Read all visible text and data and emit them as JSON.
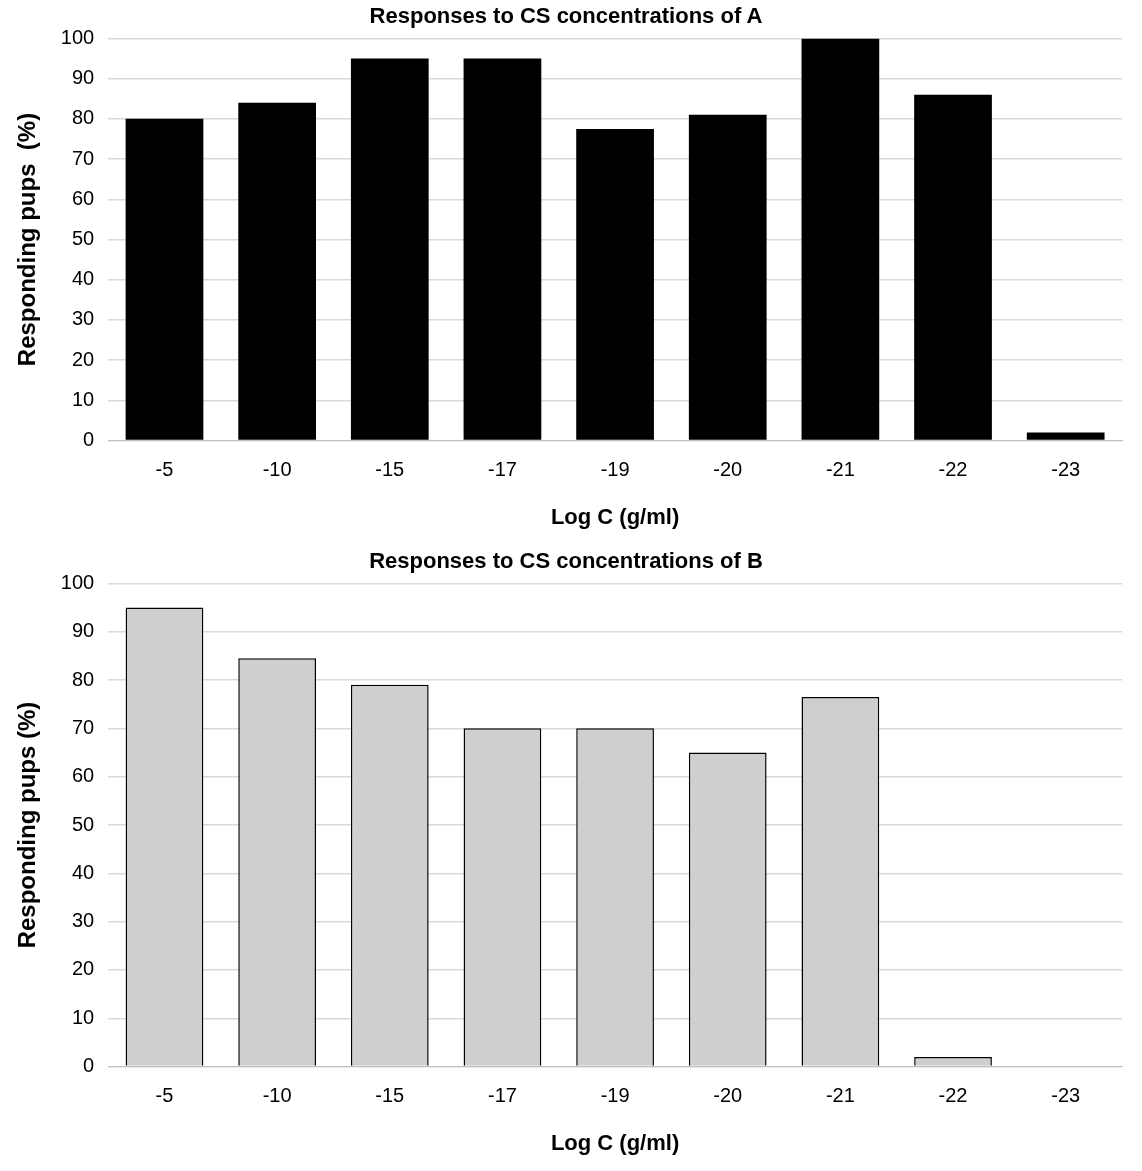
{
  "chart_data": [
    {
      "type": "bar",
      "title": "Responses to CS concentrations of A",
      "xlabel": "Log C (g/ml)",
      "ylabel": "Responding pups  (%)",
      "categories": [
        "-5",
        "-10",
        "-15",
        "-17",
        "-19",
        "-20",
        "-21",
        "-22",
        "-23"
      ],
      "series": [
        {
          "color": "#000000",
          "values": [
            80,
            84,
            95,
            95,
            77.5,
            81,
            100,
            86,
            2
          ]
        }
      ],
      "ylim": [
        0,
        100
      ],
      "yticks": [
        0,
        10,
        20,
        30,
        40,
        50,
        60,
        70,
        80,
        90,
        100
      ],
      "grid": "y",
      "legend": false
    },
    {
      "type": "bar",
      "title": "Responses to CS concentrations of B",
      "xlabel": "Log C (g/ml)",
      "ylabel": "Responding pups (%)",
      "categories": [
        "-5",
        "-10",
        "-15",
        "-17",
        "-19",
        "-20",
        "-21",
        "-22",
        "-23"
      ],
      "series": [
        {
          "color": "#d0cece",
          "values": [
            95,
            84.5,
            79,
            70,
            70,
            65,
            76.5,
            2,
            0
          ]
        }
      ],
      "ylim": [
        0,
        100
      ],
      "yticks": [
        0,
        10,
        20,
        30,
        40,
        50,
        60,
        70,
        80,
        90,
        100
      ],
      "grid": "y",
      "legend": false
    }
  ]
}
